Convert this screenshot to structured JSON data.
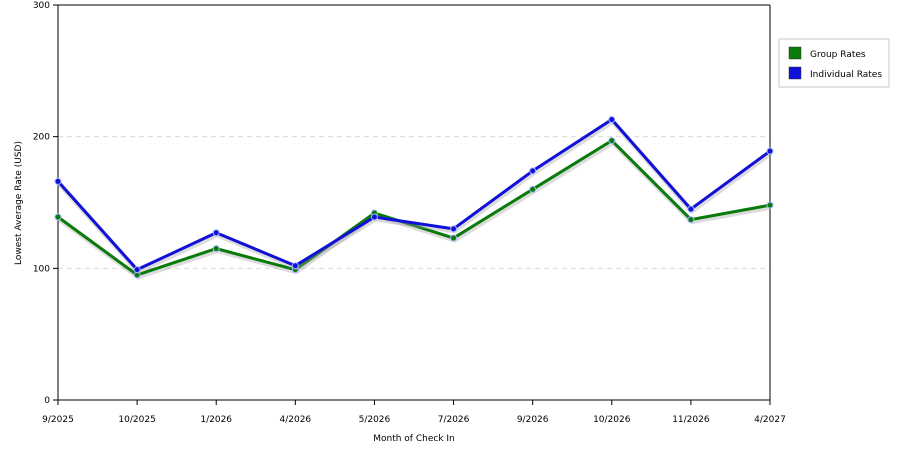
{
  "chart_data": {
    "type": "line",
    "title": "",
    "xlabel": "Month of Check In",
    "ylabel": "Lowest Average Rate (USD)",
    "categories": [
      "9/2025",
      "10/2025",
      "1/2026",
      "4/2026",
      "5/2026",
      "7/2026",
      "9/2026",
      "10/2026",
      "11/2026",
      "4/2027"
    ],
    "ylim": [
      0,
      300
    ],
    "yticks": [
      0,
      100,
      200,
      300
    ],
    "grid": "horizontal dashed",
    "legend_position": "right",
    "series": [
      {
        "name": "Group Rates",
        "color": "#0a7a0a",
        "values": [
          139,
          95,
          115,
          99,
          142,
          123,
          160,
          197,
          137,
          148
        ]
      },
      {
        "name": "Individual Rates",
        "color": "#1010d8",
        "values": [
          166,
          99,
          127,
          102,
          139,
          130,
          174,
          213,
          145,
          189
        ]
      }
    ]
  }
}
